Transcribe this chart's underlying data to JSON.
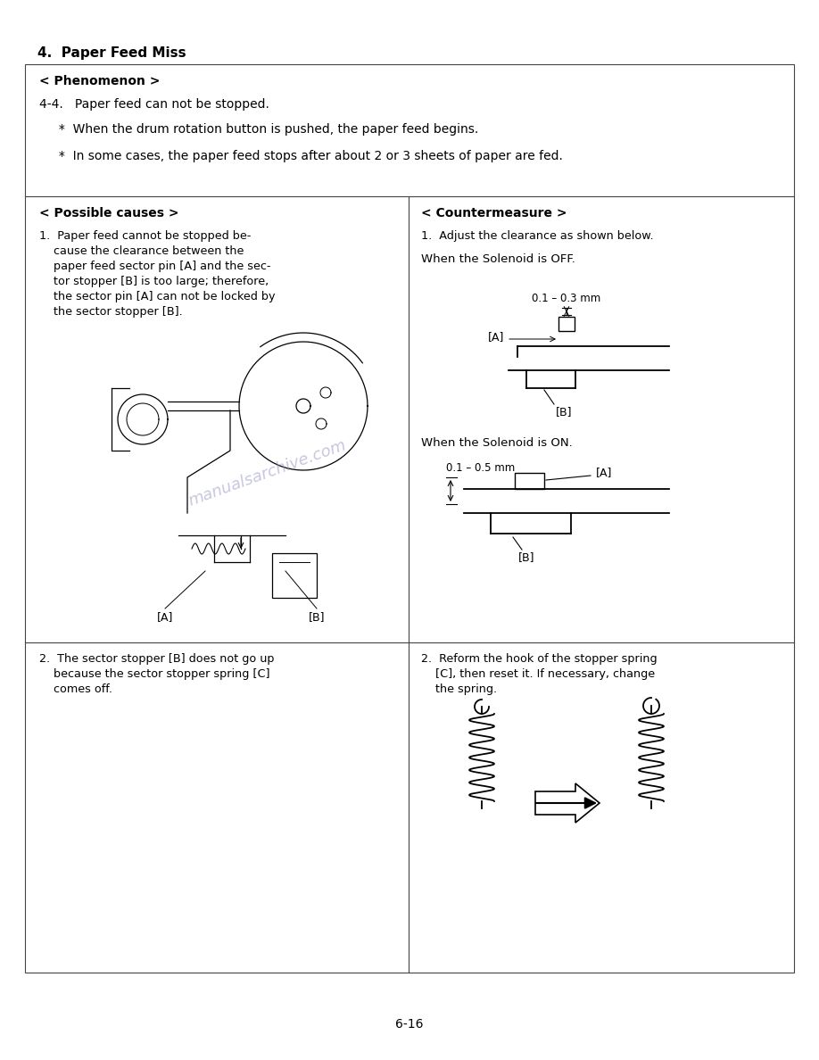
{
  "page_number": "6-16",
  "title": "4.  Paper Feed Miss",
  "bg_color": "#ffffff",
  "text_color": "#000000",
  "watermark_color": "#9090c0",
  "phenomenon_header": "< Phenomenon >",
  "phenomenon_text_1": "4-4.   Paper feed can not be stopped.",
  "phenomenon_text_2": "     *  When the drum rotation button is pushed, the paper feed begins.",
  "phenomenon_text_3": "     *  In some cases, the paper feed stops after about 2 or 3 sheets of paper are fed.",
  "possible_causes_header": "< Possible causes >",
  "countermeasure_header": "< Countermeasure >",
  "cause1_lines": [
    "1.  Paper feed cannot be stopped be-",
    "    cause the clearance between the",
    "    paper feed sector pin [A] and the sec-",
    "    tor stopper [B] is too large; therefore,",
    "    the sector pin [A] can not be locked by",
    "    the sector stopper [B]."
  ],
  "countermeasure1_line": "1.  Adjust the clearance as shown below.",
  "solenoid_off_label": "When the Solenoid is OFF.",
  "solenoid_off_dim": "0.1 – 0.3 mm",
  "solenoid_on_label": "When the Solenoid is ON.",
  "solenoid_on_dim": "0.1 – 0.5 mm",
  "label_A": "[A]",
  "label_B": "[B]",
  "cause2_lines": [
    "2.  The sector stopper [B] does not go up",
    "    because the sector stopper spring [C]",
    "    comes off."
  ],
  "countermeasure2_lines": [
    "2.  Reform the hook of the stopper spring",
    "    [C], then reset it. If necessary, change",
    "    the spring."
  ],
  "watermark": "manualsarchive.com"
}
